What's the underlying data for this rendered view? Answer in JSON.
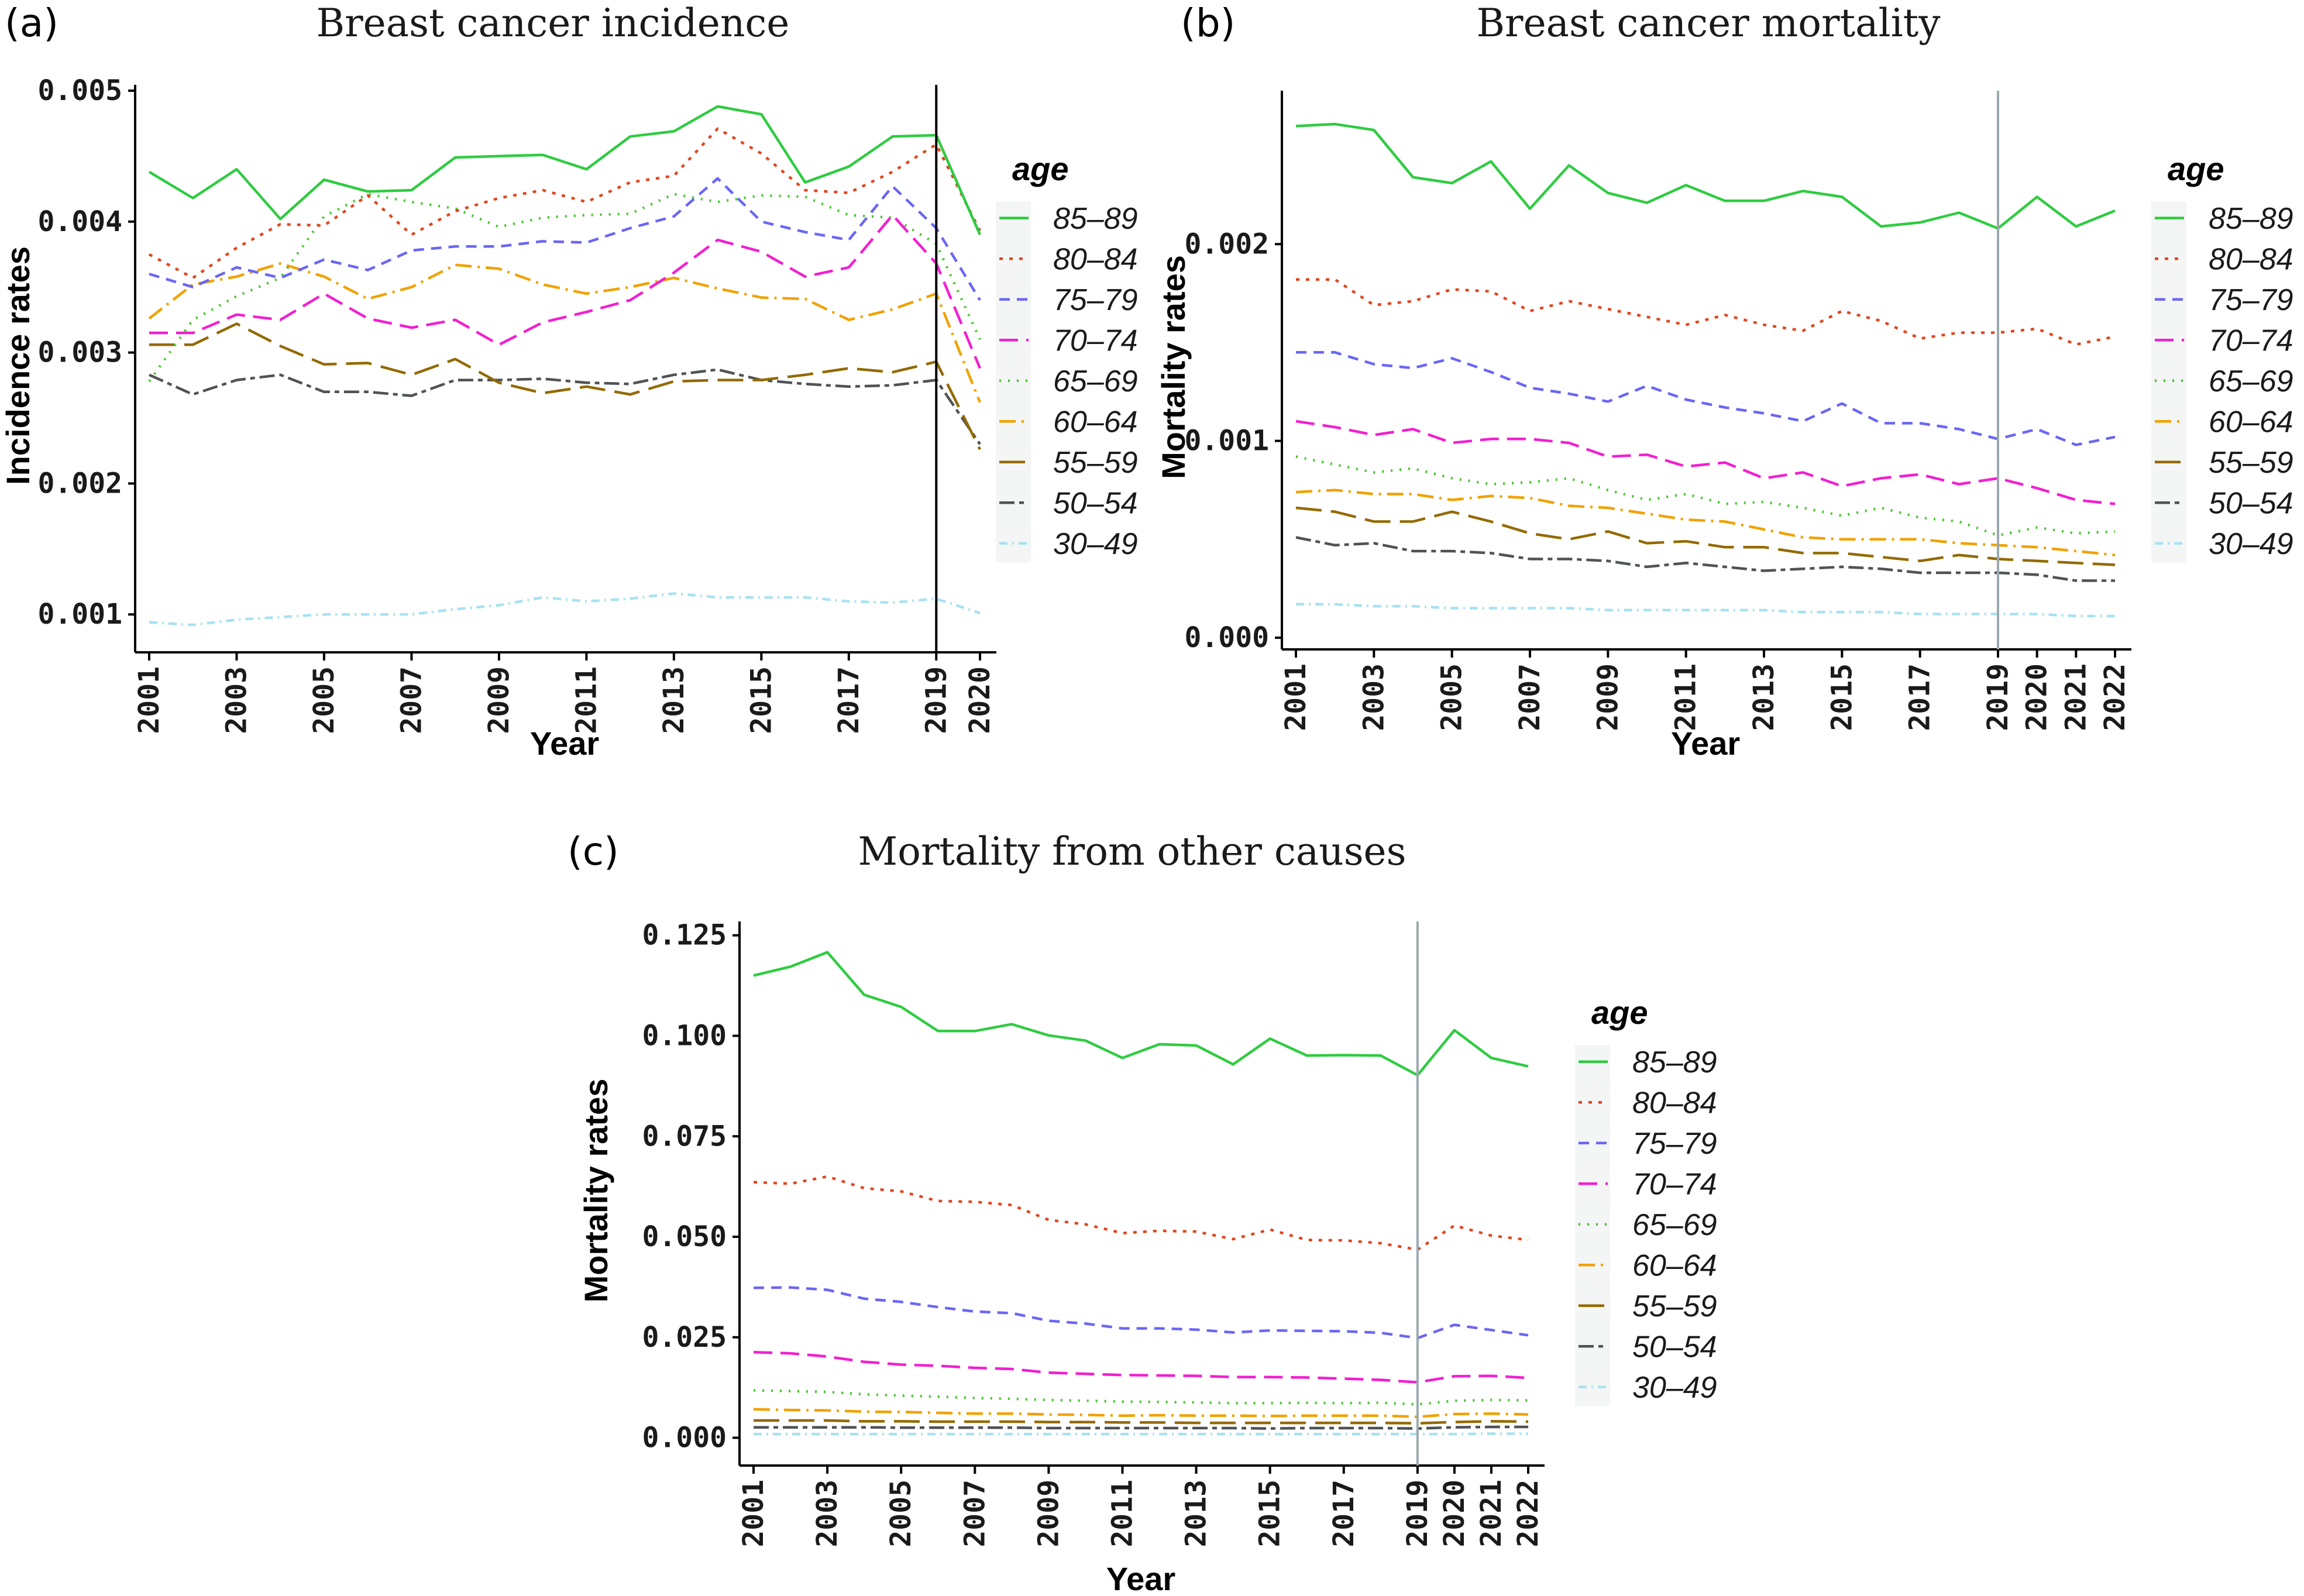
{
  "legend": {
    "title": "age",
    "series_styles": [
      {
        "name": "85-89",
        "label": "85–89",
        "color": "#2ECC40",
        "dash": "solid"
      },
      {
        "name": "80-84",
        "label": "80–84",
        "color": "#E0461E",
        "dash": "dotted-short"
      },
      {
        "name": "75-79",
        "label": "75–79",
        "color": "#6B66F5",
        "dash": "dashed"
      },
      {
        "name": "70-74",
        "label": "70–74",
        "color": "#F21FD0",
        "dash": "long-dashed"
      },
      {
        "name": "65-69",
        "label": "65–69",
        "color": "#46C72D",
        "dash": "dotted"
      },
      {
        "name": "60-64",
        "label": "60–64",
        "color": "#F0A202",
        "dash": "dot-dash"
      },
      {
        "name": "55-59",
        "label": "55–59",
        "color": "#936A00",
        "dash": "long-dash"
      },
      {
        "name": "50-54",
        "label": "50–54",
        "color": "#4F5355",
        "dash": "two-dash"
      },
      {
        "name": "30-49",
        "label": "30–49",
        "color": "#A7E2F0",
        "dash": "dash-dot-fine"
      }
    ]
  },
  "chart_data": [
    {
      "panel": "(a)",
      "type": "line",
      "title": "Breast cancer incidence",
      "xlabel": "Year",
      "ylabel": "Incidence rates",
      "x": [
        2001,
        2002,
        2003,
        2004,
        2005,
        2006,
        2007,
        2008,
        2009,
        2010,
        2011,
        2012,
        2013,
        2014,
        2015,
        2016,
        2017,
        2018,
        2019,
        2020
      ],
      "xticks": [
        "2001",
        "2003",
        "2005",
        "2007",
        "2009",
        "2011",
        "2013",
        "2015",
        "2017",
        "2019",
        "2020"
      ],
      "xtick_values": [
        2001,
        2003,
        2005,
        2007,
        2009,
        2011,
        2013,
        2015,
        2017,
        2019,
        2020
      ],
      "ylim": [
        0.0008,
        0.005
      ],
      "yticks": [
        "0.001",
        "0.002",
        "0.003",
        "0.004",
        "0.005"
      ],
      "ytick_values": [
        0.001,
        0.002,
        0.003,
        0.004,
        0.005
      ],
      "reference_line_x": 2019,
      "reference_line_color": "#000000",
      "series": [
        {
          "name": "85-89",
          "values": [
            0.00438,
            0.00418,
            0.0044,
            0.00402,
            0.00432,
            0.00423,
            0.00424,
            0.00449,
            0.0045,
            0.00451,
            0.0044,
            0.00465,
            0.00469,
            0.00488,
            0.00482,
            0.0043,
            0.00442,
            0.00465,
            0.00466,
            0.0039
          ]
        },
        {
          "name": "80-84",
          "values": [
            0.00375,
            0.00357,
            0.0038,
            0.00398,
            0.00397,
            0.0042,
            0.0039,
            0.00408,
            0.00418,
            0.00424,
            0.00415,
            0.0043,
            0.00435,
            0.00471,
            0.00452,
            0.00424,
            0.00422,
            0.00438,
            0.00459,
            0.00393
          ]
        },
        {
          "name": "75-79",
          "values": [
            0.0036,
            0.0035,
            0.00365,
            0.00357,
            0.00371,
            0.00363,
            0.00378,
            0.00381,
            0.00381,
            0.00385,
            0.00384,
            0.00395,
            0.00404,
            0.00433,
            0.004,
            0.00392,
            0.00386,
            0.00427,
            0.00395,
            0.0034
          ]
        },
        {
          "name": "70-74",
          "values": [
            0.00315,
            0.00315,
            0.00329,
            0.00325,
            0.00345,
            0.00326,
            0.00319,
            0.00325,
            0.00306,
            0.00323,
            0.00331,
            0.0034,
            0.00361,
            0.00386,
            0.00377,
            0.00358,
            0.00365,
            0.00405,
            0.00368,
            0.00288
          ]
        },
        {
          "name": "65-69",
          "values": [
            0.00278,
            0.00325,
            0.00343,
            0.00357,
            0.00404,
            0.00421,
            0.00415,
            0.0041,
            0.00396,
            0.00403,
            0.00405,
            0.00406,
            0.00421,
            0.00415,
            0.0042,
            0.00419,
            0.00405,
            0.00403,
            0.00383,
            0.0031
          ]
        },
        {
          "name": "60-64",
          "values": [
            0.00326,
            0.00352,
            0.00358,
            0.00368,
            0.00358,
            0.00341,
            0.0035,
            0.00367,
            0.00364,
            0.00352,
            0.00345,
            0.0035,
            0.00357,
            0.00349,
            0.00342,
            0.00341,
            0.00325,
            0.00333,
            0.00345,
            0.00262
          ]
        },
        {
          "name": "55-59",
          "values": [
            0.00306,
            0.00306,
            0.00322,
            0.00305,
            0.00291,
            0.00292,
            0.00283,
            0.00295,
            0.00277,
            0.00269,
            0.00274,
            0.00268,
            0.00278,
            0.00279,
            0.00279,
            0.00283,
            0.00288,
            0.00285,
            0.00293,
            0.00226
          ]
        },
        {
          "name": "50-54",
          "values": [
            0.00283,
            0.00268,
            0.00279,
            0.00283,
            0.0027,
            0.0027,
            0.00267,
            0.00279,
            0.00279,
            0.0028,
            0.00277,
            0.00276,
            0.00283,
            0.00287,
            0.00279,
            0.00276,
            0.00274,
            0.00275,
            0.00279,
            0.0023
          ]
        },
        {
          "name": "30-49",
          "values": [
            0.00094,
            0.00092,
            0.00096,
            0.00098,
            0.001,
            0.001,
            0.001,
            0.00104,
            0.00107,
            0.00113,
            0.0011,
            0.00112,
            0.00116,
            0.00113,
            0.00113,
            0.00113,
            0.0011,
            0.00109,
            0.00112,
            0.00101
          ]
        }
      ]
    },
    {
      "panel": "(b)",
      "type": "line",
      "title": "Breast cancer mortality",
      "xlabel": "Year",
      "ylabel": "Mortality rates",
      "x": [
        2001,
        2002,
        2003,
        2004,
        2005,
        2006,
        2007,
        2008,
        2009,
        2010,
        2011,
        2012,
        2013,
        2014,
        2015,
        2016,
        2017,
        2018,
        2019,
        2020,
        2021,
        2022
      ],
      "xticks": [
        "2001",
        "2003",
        "2005",
        "2007",
        "2009",
        "2011",
        "2013",
        "2015",
        "2017",
        "2019",
        "2020",
        "2021",
        "2022"
      ],
      "xtick_values": [
        2001,
        2003,
        2005,
        2007,
        2009,
        2011,
        2013,
        2015,
        2017,
        2019,
        2020,
        2021,
        2022
      ],
      "ylim": [
        0,
        0.00275
      ],
      "yticks": [
        "0.000",
        "0.001",
        "0.002"
      ],
      "ytick_values": [
        0,
        0.001,
        0.002
      ],
      "reference_line_x": 2019,
      "reference_line_color": "#9aa9ad",
      "series": [
        {
          "name": "85-89",
          "values": [
            0.0026,
            0.00261,
            0.00258,
            0.00234,
            0.00231,
            0.00242,
            0.00218,
            0.0024,
            0.00226,
            0.00221,
            0.0023,
            0.00222,
            0.00222,
            0.00227,
            0.00224,
            0.00209,
            0.00211,
            0.00216,
            0.00208,
            0.00224,
            0.00209,
            0.00217
          ]
        },
        {
          "name": "80-84",
          "values": [
            0.00182,
            0.00182,
            0.00169,
            0.00171,
            0.00177,
            0.00176,
            0.00166,
            0.00171,
            0.00167,
            0.00163,
            0.00159,
            0.00164,
            0.00159,
            0.00156,
            0.00166,
            0.00161,
            0.00152,
            0.00155,
            0.00155,
            0.00157,
            0.00149,
            0.00153
          ]
        },
        {
          "name": "75-79",
          "values": [
            0.00145,
            0.00145,
            0.00139,
            0.00137,
            0.00142,
            0.00135,
            0.00127,
            0.00124,
            0.0012,
            0.00128,
            0.00121,
            0.00117,
            0.00114,
            0.0011,
            0.00119,
            0.00109,
            0.00109,
            0.00106,
            0.00101,
            0.00106,
            0.00098,
            0.00102
          ]
        },
        {
          "name": "70-74",
          "values": [
            0.0011,
            0.00107,
            0.00103,
            0.00106,
            0.00099,
            0.00101,
            0.00101,
            0.00099,
            0.00092,
            0.00093,
            0.00087,
            0.00089,
            0.00081,
            0.00084,
            0.00077,
            0.00081,
            0.00083,
            0.00078,
            0.00081,
            0.00076,
            0.0007,
            0.00068
          ]
        },
        {
          "name": "65-69",
          "values": [
            0.00092,
            0.00088,
            0.00084,
            0.00086,
            0.00081,
            0.00078,
            0.00079,
            0.00081,
            0.00075,
            0.0007,
            0.00073,
            0.00068,
            0.00069,
            0.00066,
            0.00062,
            0.00066,
            0.00061,
            0.00059,
            0.00052,
            0.00056,
            0.00053,
            0.00054
          ]
        },
        {
          "name": "60-64",
          "values": [
            0.00074,
            0.00075,
            0.00073,
            0.00073,
            0.0007,
            0.00072,
            0.00071,
            0.00067,
            0.00066,
            0.00063,
            0.0006,
            0.00059,
            0.00055,
            0.00051,
            0.0005,
            0.0005,
            0.0005,
            0.00048,
            0.00047,
            0.00046,
            0.00044,
            0.00042
          ]
        },
        {
          "name": "55-59",
          "values": [
            0.00066,
            0.00064,
            0.00059,
            0.00059,
            0.00064,
            0.00059,
            0.00053,
            0.0005,
            0.00054,
            0.00048,
            0.00049,
            0.00046,
            0.00046,
            0.00043,
            0.00043,
            0.00041,
            0.00039,
            0.00042,
            0.0004,
            0.00039,
            0.00038,
            0.00037
          ]
        },
        {
          "name": "50-54",
          "values": [
            0.00051,
            0.00047,
            0.00048,
            0.00044,
            0.00044,
            0.00043,
            0.0004,
            0.0004,
            0.00039,
            0.00036,
            0.00038,
            0.00036,
            0.00034,
            0.00035,
            0.00036,
            0.00035,
            0.00033,
            0.00033,
            0.00033,
            0.00032,
            0.00029,
            0.00029
          ]
        },
        {
          "name": "30-49",
          "values": [
            0.00017,
            0.00017,
            0.00016,
            0.00016,
            0.00015,
            0.00015,
            0.00015,
            0.00015,
            0.00014,
            0.00014,
            0.00014,
            0.00014,
            0.00014,
            0.00013,
            0.00013,
            0.00013,
            0.00012,
            0.00012,
            0.00012,
            0.00012,
            0.00011,
            0.00011
          ]
        }
      ]
    },
    {
      "panel": "(c)",
      "type": "line",
      "title": "Mortality from other causes",
      "xlabel": "Year",
      "ylabel": "Mortality rates",
      "x": [
        2001,
        2002,
        2003,
        2004,
        2005,
        2006,
        2007,
        2008,
        2009,
        2010,
        2011,
        2012,
        2013,
        2014,
        2015,
        2016,
        2017,
        2018,
        2019,
        2020,
        2021,
        2022
      ],
      "xticks": [
        "2001",
        "2003",
        "2005",
        "2007",
        "2009",
        "2011",
        "2013",
        "2015",
        "2017",
        "2019",
        "2020",
        "2021",
        "2022"
      ],
      "xtick_values": [
        2001,
        2003,
        2005,
        2007,
        2009,
        2011,
        2013,
        2015,
        2017,
        2019,
        2020,
        2021,
        2022
      ],
      "ylim": [
        -0.004,
        0.127
      ],
      "yticks": [
        "0.000",
        "0.025",
        "0.050",
        "0.075",
        "0.100",
        "0.125"
      ],
      "ytick_values": [
        0,
        0.025,
        0.05,
        0.075,
        0.1,
        0.125
      ],
      "reference_line_x": 2019,
      "reference_line_color": "#9aa9ad",
      "series": [
        {
          "name": "85-89",
          "values": [
            0.115,
            0.1172,
            0.1208,
            0.1102,
            0.1072,
            0.1012,
            0.1012,
            0.1029,
            0.1001,
            0.0988,
            0.0945,
            0.0979,
            0.0976,
            0.0929,
            0.0993,
            0.0951,
            0.0952,
            0.0951,
            0.0902,
            0.1014,
            0.0945,
            0.0924
          ]
        },
        {
          "name": "80-84",
          "values": [
            0.0636,
            0.0632,
            0.065,
            0.0621,
            0.0613,
            0.0589,
            0.0587,
            0.0579,
            0.0542,
            0.0531,
            0.0509,
            0.0515,
            0.0513,
            0.0494,
            0.0518,
            0.0492,
            0.0491,
            0.0484,
            0.0468,
            0.0528,
            0.0503,
            0.0492
          ]
        },
        {
          "name": "75-79",
          "values": [
            0.0373,
            0.0374,
            0.0368,
            0.0346,
            0.0338,
            0.0325,
            0.0314,
            0.031,
            0.0291,
            0.0284,
            0.0272,
            0.0272,
            0.0269,
            0.0262,
            0.0267,
            0.0266,
            0.0265,
            0.0261,
            0.0248,
            0.0281,
            0.0268,
            0.0255
          ]
        },
        {
          "name": "70-74",
          "values": [
            0.0213,
            0.021,
            0.0202,
            0.0189,
            0.0182,
            0.0179,
            0.0174,
            0.0171,
            0.0162,
            0.0159,
            0.0156,
            0.0155,
            0.0154,
            0.0151,
            0.0151,
            0.015,
            0.0147,
            0.0144,
            0.0138,
            0.0153,
            0.0154,
            0.0149
          ]
        },
        {
          "name": "65-69",
          "values": [
            0.0118,
            0.0116,
            0.0114,
            0.0108,
            0.0105,
            0.0102,
            0.0099,
            0.0097,
            0.0094,
            0.0092,
            0.009,
            0.0089,
            0.0088,
            0.0086,
            0.0086,
            0.0087,
            0.0086,
            0.0087,
            0.0083,
            0.0092,
            0.0094,
            0.0093
          ]
        },
        {
          "name": "60-64",
          "values": [
            0.0071,
            0.0069,
            0.0068,
            0.0065,
            0.0064,
            0.0062,
            0.006,
            0.006,
            0.0058,
            0.0057,
            0.0055,
            0.0056,
            0.0055,
            0.0055,
            0.0054,
            0.0055,
            0.0055,
            0.0055,
            0.0052,
            0.0059,
            0.006,
            0.0058
          ]
        },
        {
          "name": "55-59",
          "values": [
            0.0043,
            0.0043,
            0.0043,
            0.0041,
            0.0041,
            0.004,
            0.004,
            0.004,
            0.0039,
            0.0039,
            0.0038,
            0.0038,
            0.0037,
            0.0037,
            0.0037,
            0.0037,
            0.0037,
            0.0037,
            0.0036,
            0.0039,
            0.0041,
            0.004
          ]
        },
        {
          "name": "50-54",
          "values": [
            0.0026,
            0.0026,
            0.0026,
            0.0026,
            0.0025,
            0.0025,
            0.0025,
            0.0025,
            0.0024,
            0.0024,
            0.0024,
            0.0024,
            0.0024,
            0.0024,
            0.0023,
            0.0024,
            0.0024,
            0.0024,
            0.0023,
            0.0026,
            0.0027,
            0.0027
          ]
        },
        {
          "name": "30-49",
          "values": [
            0.0009,
            0.0009,
            0.0009,
            0.0009,
            0.0009,
            0.0009,
            0.0009,
            0.0009,
            0.0009,
            0.0009,
            0.0009,
            0.0009,
            0.0009,
            0.0009,
            0.0009,
            0.0009,
            0.0009,
            0.0009,
            0.0009,
            0.0009,
            0.001,
            0.001
          ]
        }
      ]
    }
  ]
}
